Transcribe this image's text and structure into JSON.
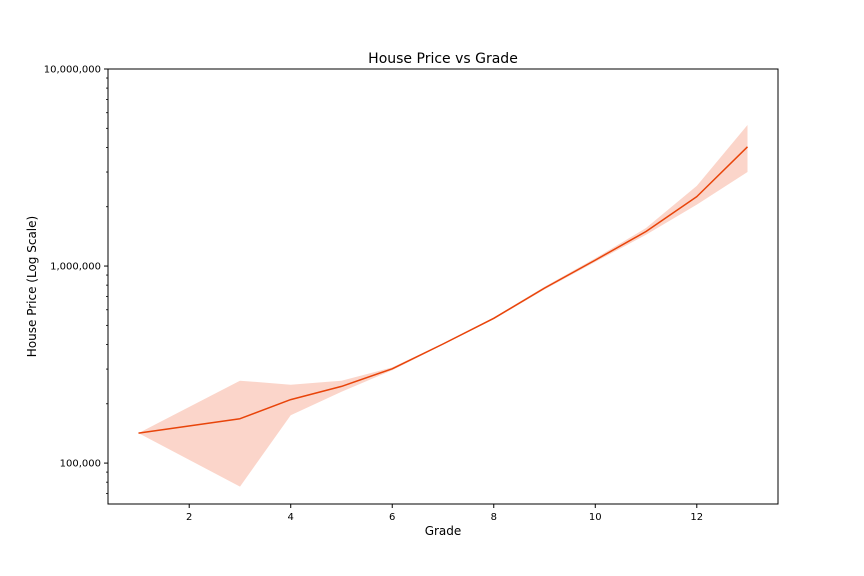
{
  "chart_data": {
    "type": "line",
    "title": "House Price vs Grade",
    "xlabel": "Grade",
    "ylabel": "House Price (Log Scale)",
    "yscale": "log",
    "xlim": [
      0.4,
      13.6
    ],
    "ylim": [
      62000,
      10000000
    ],
    "grid": false,
    "legend": "none",
    "x_ticks": [
      2,
      4,
      6,
      8,
      10,
      12
    ],
    "x_tick_labels": [
      "2",
      "4",
      "6",
      "8",
      "10",
      "12"
    ],
    "y_ticks": [
      100000,
      1000000,
      10000000
    ],
    "y_tick_labels": [
      "100,000",
      "1,000,000",
      "10,000,000"
    ],
    "series": [
      {
        "color": "#e8440a",
        "band_color": "#f9b9a6",
        "points": [
          {
            "x": 1,
            "y": 142000,
            "lo": 142000,
            "hi": 142000
          },
          {
            "x": 3,
            "y": 168000,
            "lo": 76000,
            "hi": 262000
          },
          {
            "x": 4,
            "y": 210000,
            "lo": 175000,
            "hi": 250000
          },
          {
            "x": 5,
            "y": 245000,
            "lo": 230000,
            "hi": 262000
          },
          {
            "x": 6,
            "y": 301000,
            "lo": 296000,
            "hi": 306000
          },
          {
            "x": 7,
            "y": 402000,
            "lo": 399000,
            "hi": 405000
          },
          {
            "x": 8,
            "y": 543000,
            "lo": 537000,
            "hi": 549000
          },
          {
            "x": 9,
            "y": 773000,
            "lo": 760000,
            "hi": 786000
          },
          {
            "x": 10,
            "y": 1072000,
            "lo": 1050000,
            "hi": 1095000
          },
          {
            "x": 11,
            "y": 1497000,
            "lo": 1440000,
            "hi": 1560000
          },
          {
            "x": 12,
            "y": 2250000,
            "lo": 2050000,
            "hi": 2550000
          },
          {
            "x": 13,
            "y": 4030000,
            "lo": 3000000,
            "hi": 5200000
          }
        ]
      }
    ]
  }
}
